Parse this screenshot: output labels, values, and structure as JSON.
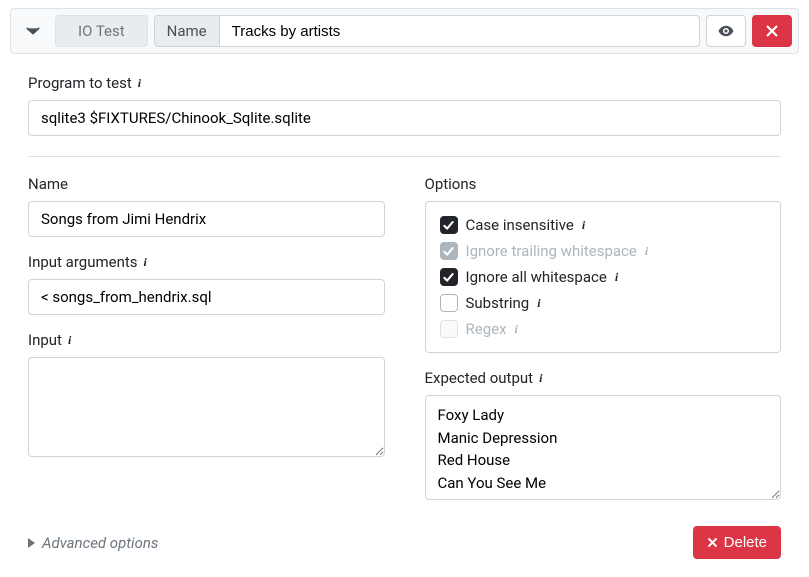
{
  "header": {
    "test_type_label": "IO Test",
    "name_prefix_label": "Name",
    "title_value": "Tracks by artists"
  },
  "program": {
    "label": "Program to test",
    "value": "sqlite3 $FIXTURES/Chinook_Sqlite.sqlite"
  },
  "left": {
    "name": {
      "label": "Name",
      "value": "Songs from Jimi Hendrix"
    },
    "input_args": {
      "label": "Input arguments",
      "value": "< songs_from_hendrix.sql"
    },
    "input": {
      "label": "Input",
      "value": ""
    }
  },
  "right": {
    "options_label": "Options",
    "options": [
      {
        "label": "Case insensitive",
        "checked": true,
        "disabled": false,
        "has_info": true
      },
      {
        "label": "Ignore trailing whitespace",
        "checked": true,
        "disabled": true,
        "has_info": true
      },
      {
        "label": "Ignore all whitespace",
        "checked": true,
        "disabled": false,
        "has_info": true
      },
      {
        "label": "Substring",
        "checked": false,
        "disabled": false,
        "has_info": true
      },
      {
        "label": "Regex",
        "checked": false,
        "disabled": true,
        "has_info": true
      }
    ],
    "expected": {
      "label": "Expected output",
      "value": "Foxy Lady\nManic Depression\nRed House\nCan You See Me"
    }
  },
  "footer": {
    "advanced_label": "Advanced options",
    "delete_label": "Delete"
  },
  "colors": {
    "danger": "#dc3545",
    "border": "#ced4da",
    "muted": "#6c757d",
    "bg_light": "#f8f9fa"
  }
}
